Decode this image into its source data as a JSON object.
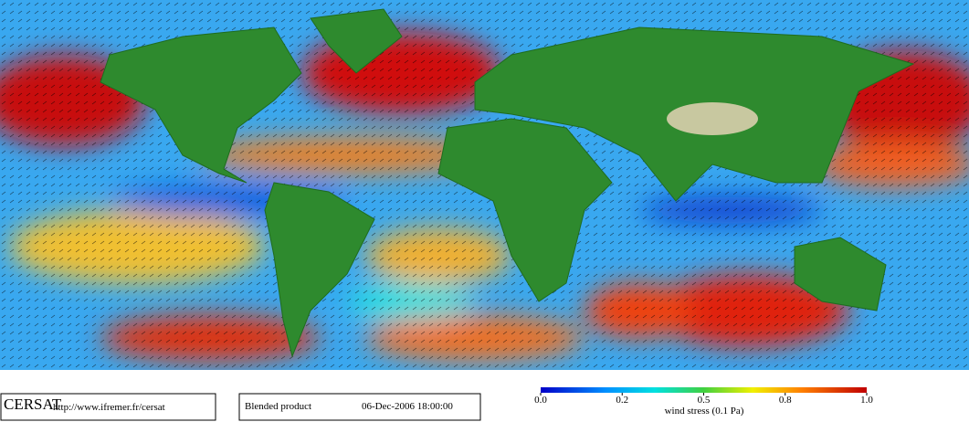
{
  "footer": {
    "logo": "CERSAT",
    "url": "http://www.ifremer.fr/cersat",
    "product": "Blended product",
    "date": "06-Dec-2006 18:00:00"
  },
  "colorbar": {
    "ticks": [
      "0.0",
      "0.2",
      "0.5",
      "0.8",
      "1.0"
    ],
    "label": "wind stress (0.1 Pa)"
  }
}
